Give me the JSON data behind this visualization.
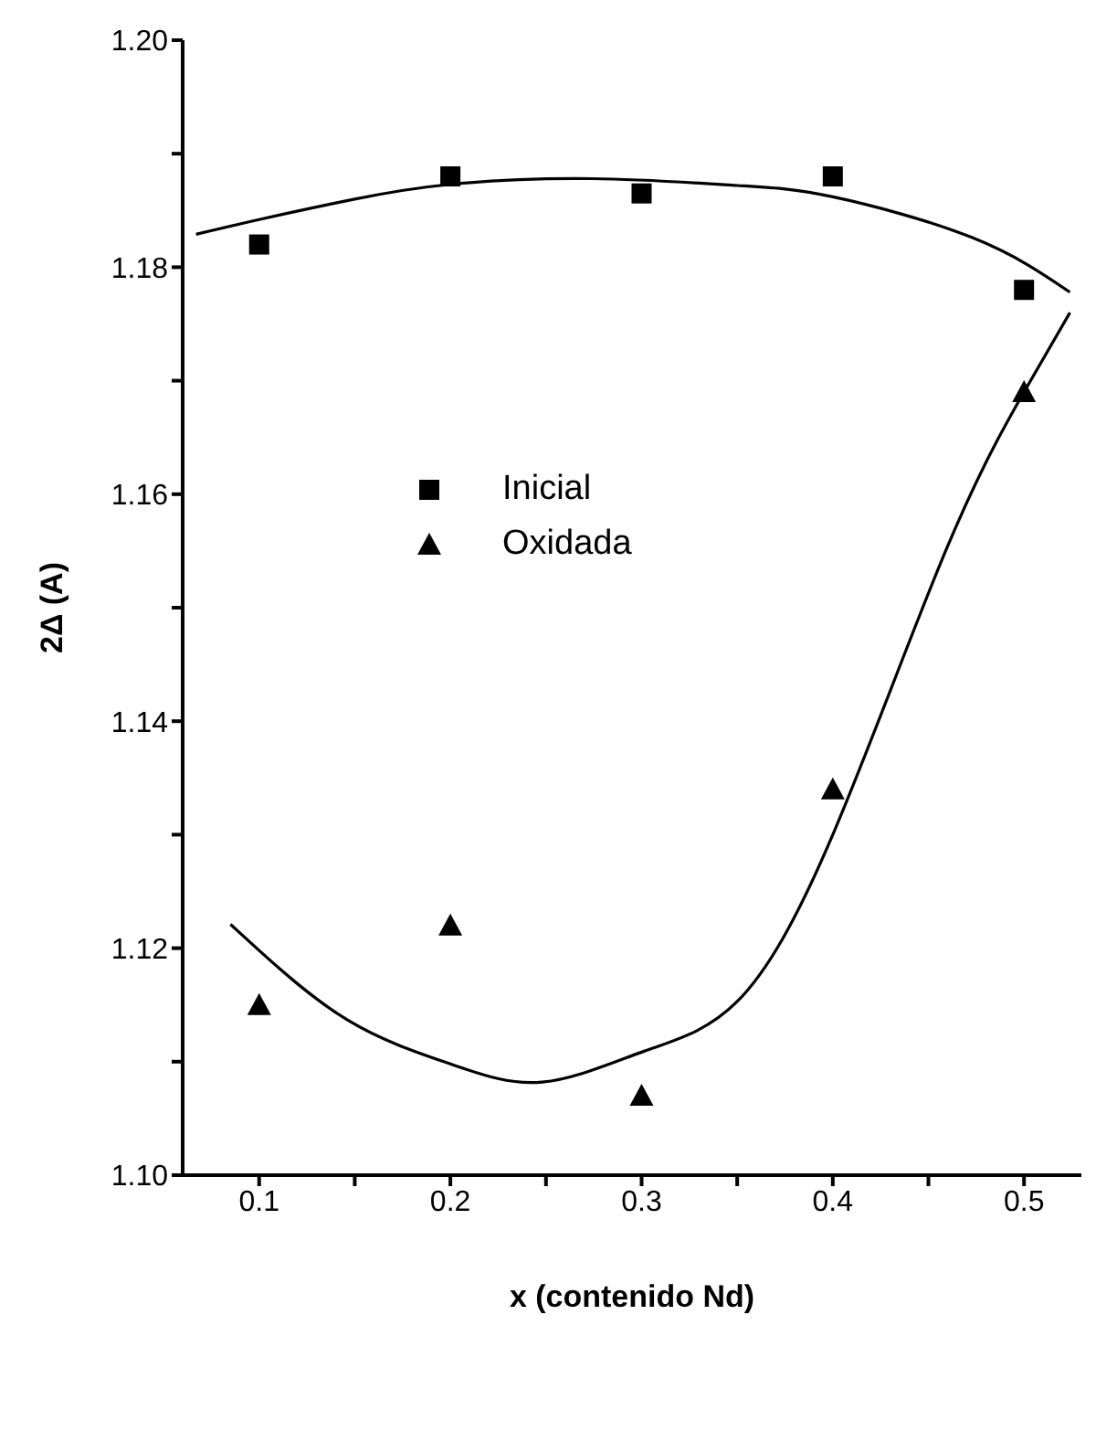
{
  "chart_data": {
    "type": "scatter",
    "xlabel": "x (contenido Nd)",
    "ylabel": "2Δ (A)",
    "xlim": [
      0.06,
      0.53
    ],
    "xticks": [
      0.1,
      {
        "value": 0.15,
        "label": null
      },
      0.2,
      {
        "value": 0.25,
        "label": null
      },
      0.3,
      {
        "value": 0.35,
        "label": null
      },
      0.4,
      {
        "value": 0.45,
        "label": null
      },
      0.5
    ],
    "ylim": [
      1.1,
      1.2
    ],
    "yticks": [
      {
        "value": 1.1,
        "label": "1.10"
      },
      {
        "value": 1.11,
        "label": null
      },
      {
        "value": 1.12,
        "label": "1.12"
      },
      {
        "value": 1.13,
        "label": null
      },
      {
        "value": 1.14,
        "label": "1.14"
      },
      {
        "value": 1.15,
        "label": null
      },
      {
        "value": 1.16,
        "label": "1.16"
      },
      {
        "value": 1.17,
        "label": null
      },
      {
        "value": 1.18,
        "label": "1.18"
      },
      {
        "value": 1.19,
        "label": null
      },
      {
        "value": 1.2,
        "label": "1.20"
      }
    ],
    "grid": false,
    "legend": "top left",
    "series": [
      {
        "name": "Inicial",
        "type": "scatter",
        "marker": "square",
        "color": "#000000",
        "x": [
          0.1,
          0.2,
          0.3,
          0.4,
          0.5
        ],
        "values": [
          1.182,
          1.188,
          1.1865,
          1.188,
          1.178
        ]
      },
      {
        "name": "Oxidada",
        "type": "scatter",
        "marker": "triangle",
        "color": "#000000",
        "x": [
          0.1,
          0.2,
          0.3,
          0.4,
          0.5
        ],
        "values": [
          1.115,
          1.122,
          1.107,
          1.134,
          1.169
        ]
      },
      {
        "type": "line",
        "marker": "none",
        "color": "#000000",
        "x": [
          0.067,
          0.1,
          0.15,
          0.2,
          0.274,
          0.35,
          0.4,
          0.473,
          0.524
        ],
        "values": [
          1.1829,
          1.1842,
          1.186,
          1.1873,
          1.1878,
          1.1872,
          1.1862,
          1.1826,
          1.1778
        ]
      },
      {
        "type": "line",
        "marker": "none",
        "color": "#000000",
        "x": [
          0.085,
          0.1,
          0.146,
          0.2,
          0.248,
          0.301,
          0.35,
          0.4,
          0.459,
          0.5,
          0.524
        ],
        "values": [
          1.1221,
          1.1198,
          1.1137,
          1.1098,
          1.1082,
          1.1109,
          1.1153,
          1.13,
          1.155,
          1.169,
          1.176
        ]
      }
    ]
  }
}
